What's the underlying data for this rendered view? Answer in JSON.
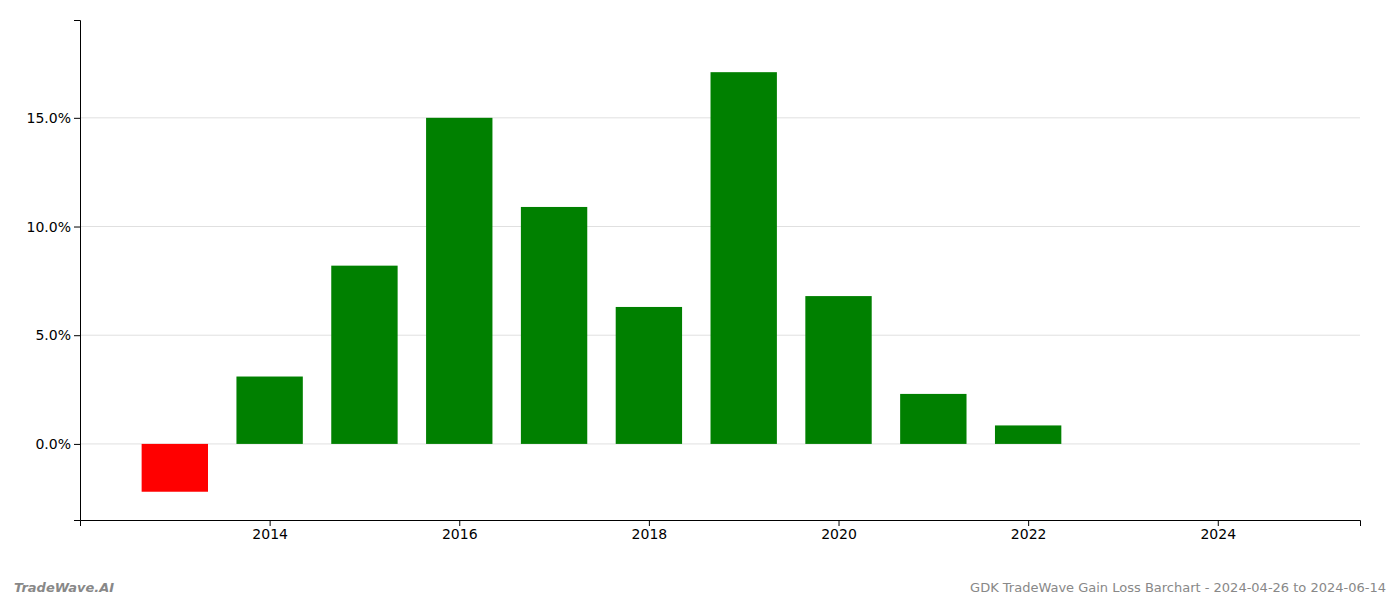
{
  "chart_data": {
    "type": "bar",
    "x": [
      2013,
      2014,
      2015,
      2016,
      2017,
      2018,
      2019,
      2020,
      2021,
      2022,
      2023
    ],
    "values": [
      -2.2,
      3.1,
      8.2,
      15.0,
      10.9,
      6.3,
      17.1,
      6.8,
      2.3,
      0.85,
      0.0
    ],
    "colors": [
      "#ff0000",
      "#008000",
      "#008000",
      "#008000",
      "#008000",
      "#008000",
      "#008000",
      "#008000",
      "#008000",
      "#008000",
      "#008000"
    ],
    "xlim": [
      2012.0,
      2025.5
    ],
    "xticks": [
      2014,
      2016,
      2018,
      2020,
      2022,
      2024
    ],
    "ylim": [
      -3.5,
      19.5
    ],
    "yticks": [
      {
        "value": 0.0,
        "label": "0.0%"
      },
      {
        "value": 5.0,
        "label": "5.0%"
      },
      {
        "value": 10.0,
        "label": "10.0%"
      },
      {
        "value": 15.0,
        "label": "15.0%"
      }
    ],
    "grid": true,
    "annotations": [
      "TradeWave.AI",
      "GDK TradeWave Gain Loss Barchart - 2024-04-26 to 2024-06-14"
    ]
  }
}
